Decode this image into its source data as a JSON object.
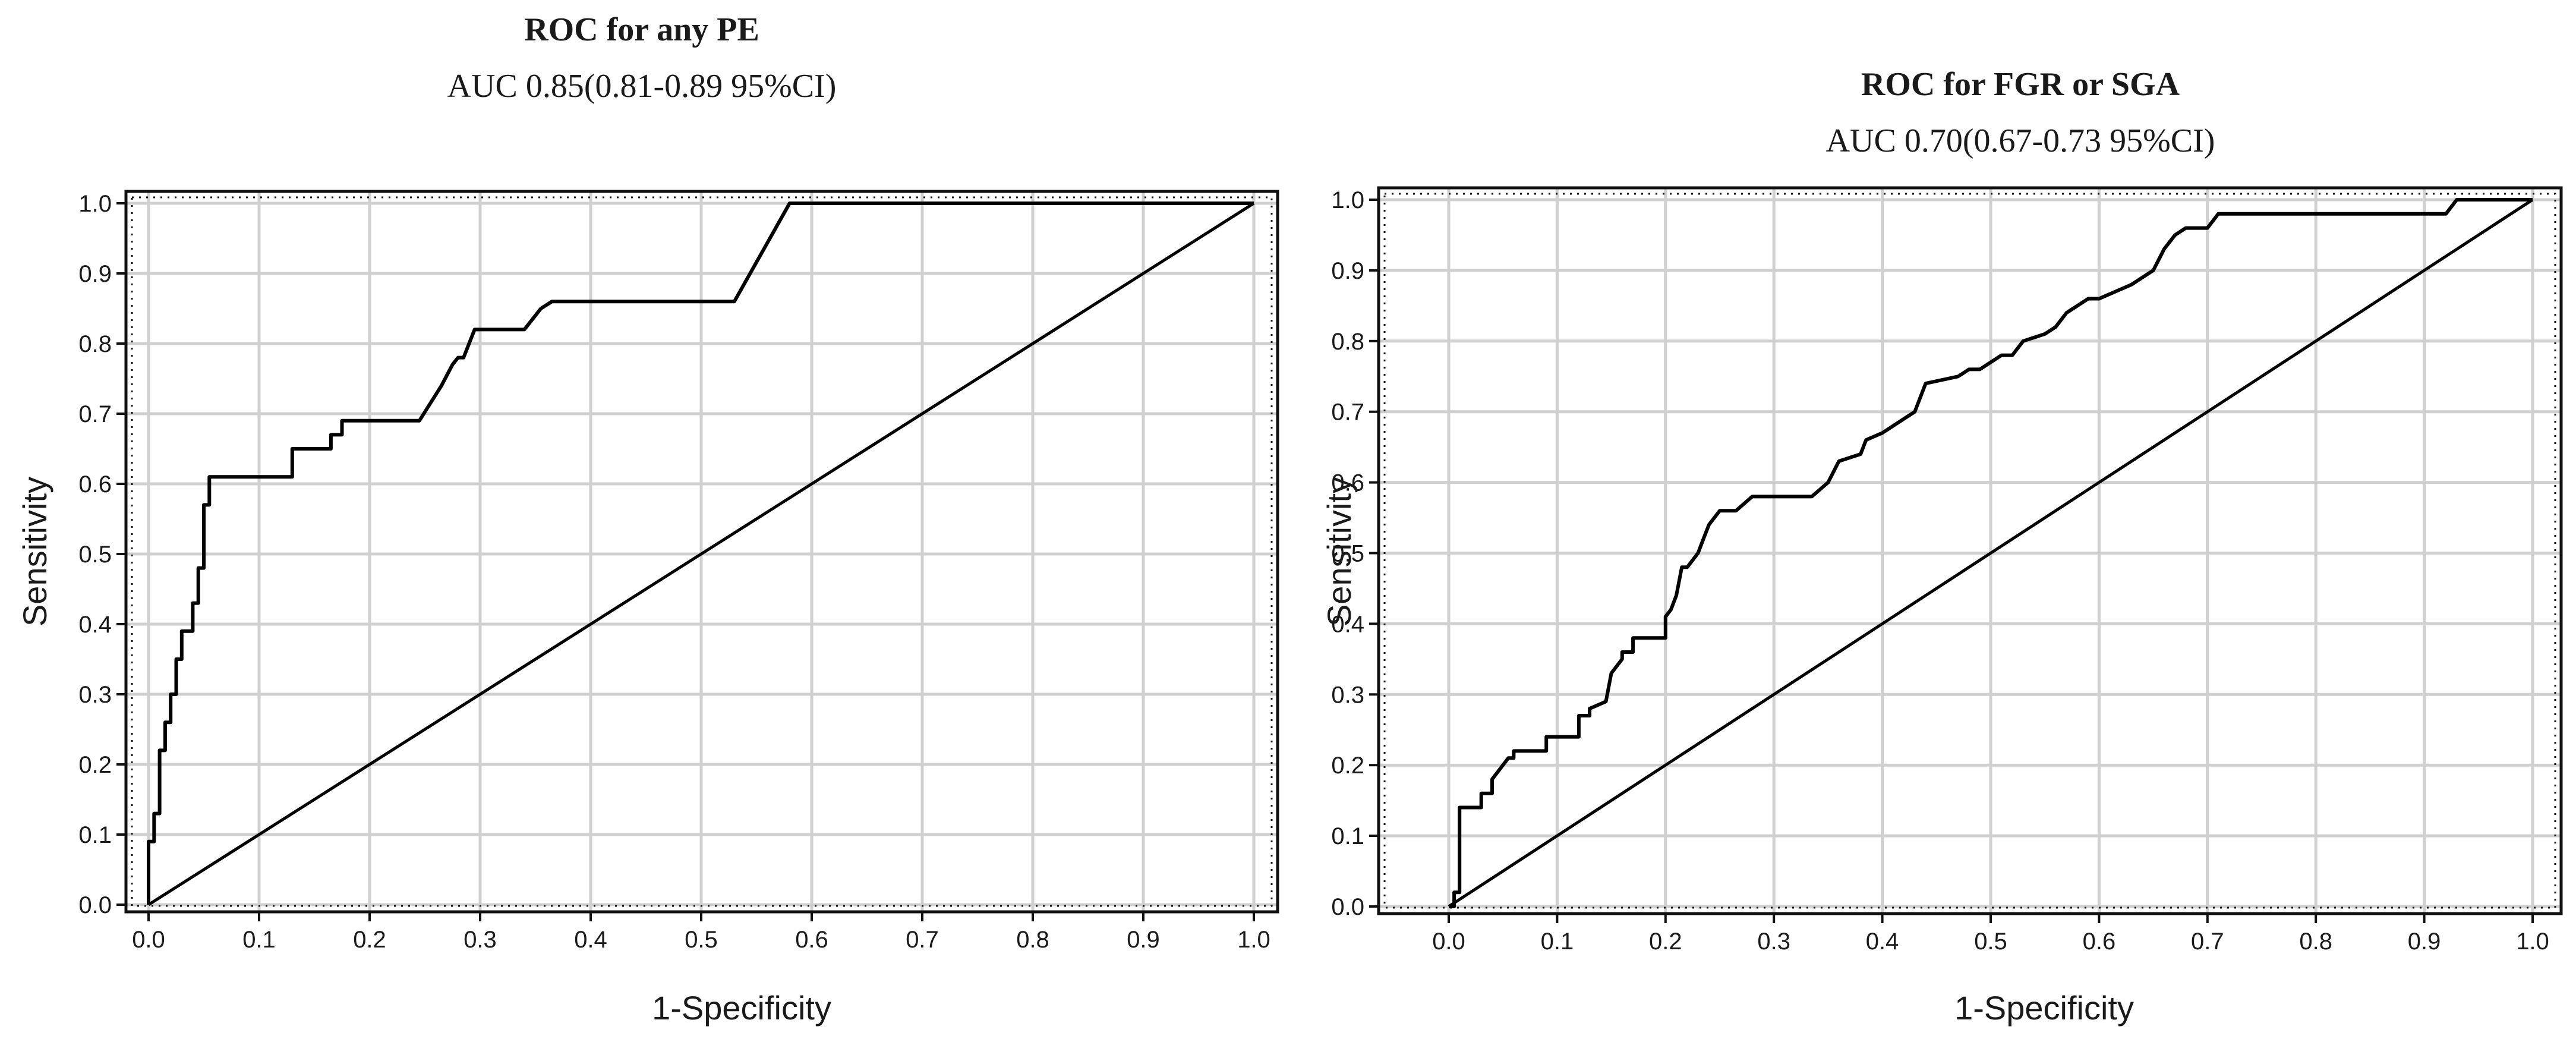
{
  "figure": {
    "left_chart": {
      "title": "ROC for any PE",
      "subtitle": "AUC 0.85(0.81-0.89 95%CI)"
    },
    "right_chart": {
      "title": "ROC for FGR or SGA",
      "subtitle": "AUC 0.70(0.67-0.73 95%CI)"
    }
  },
  "chart_data": [
    {
      "type": "line",
      "title": "ROC for any PE",
      "subtitle": "AUC 0.85(0.81-0.89 95%CI)",
      "xlabel": "1-Specificity",
      "ylabel": "Sensitivity",
      "xlim": [
        0,
        1
      ],
      "ylim": [
        0,
        1
      ],
      "xticks": [
        "0.0",
        "0.1",
        "0.2",
        "0.3",
        "0.4",
        "0.5",
        "0.6",
        "0.7",
        "0.8",
        "0.9",
        "1.0"
      ],
      "yticks": [
        "0.0",
        "0.1",
        "0.2",
        "0.3",
        "0.4",
        "0.5",
        "0.6",
        "0.7",
        "0.8",
        "0.9",
        "1.0"
      ],
      "grid": true,
      "colors": {
        "curve": "#000000",
        "grid": "#d0d0d0"
      },
      "series": [
        {
          "x": [
            0,
            0,
            0.005,
            0.005,
            0.01,
            0.01,
            0.015,
            0.015,
            0.02,
            0.02,
            0.025,
            0.025,
            0.03,
            0.03,
            0.04,
            0.04,
            0.045,
            0.045,
            0.05,
            0.05,
            0.055,
            0.055,
            0.06,
            0.06,
            0.13,
            0.13,
            0.165,
            0.165,
            0.175,
            0.175,
            0.245,
            0.265,
            0.275,
            0.28,
            0.285,
            0.295,
            0.34,
            0.355,
            0.365,
            0.53,
            0.58,
            1.0
          ],
          "y": [
            0,
            0.09,
            0.09,
            0.13,
            0.13,
            0.22,
            0.22,
            0.26,
            0.26,
            0.3,
            0.3,
            0.35,
            0.35,
            0.39,
            0.39,
            0.43,
            0.43,
            0.48,
            0.48,
            0.57,
            0.57,
            0.61,
            0.61,
            0.61,
            0.61,
            0.65,
            0.65,
            0.67,
            0.67,
            0.69,
            0.69,
            0.74,
            0.77,
            0.78,
            0.78,
            0.82,
            0.82,
            0.85,
            0.86,
            0.86,
            1.0,
            1.0
          ]
        },
        {
          "x": [
            0,
            1
          ],
          "y": [
            0,
            1
          ]
        }
      ]
    },
    {
      "type": "line",
      "title": "ROC for FGR or SGA",
      "subtitle": "AUC 0.70(0.67-0.73 95%CI)",
      "xlabel": "1-Specificity",
      "ylabel": "Sensitivity",
      "xlim": [
        0,
        1
      ],
      "ylim": [
        0,
        1
      ],
      "xticks": [
        "0.0",
        "0.1",
        "0.2",
        "0.3",
        "0.4",
        "0.5",
        "0.6",
        "0.7",
        "0.8",
        "0.9",
        "1.0"
      ],
      "yticks": [
        "0.0",
        "0.1",
        "0.2",
        "0.3",
        "0.4",
        "0.5",
        "0.6",
        "0.7",
        "0.8",
        "0.9",
        "1.0"
      ],
      "grid": true,
      "colors": {
        "curve": "#000000",
        "grid": "#d0d0d0"
      },
      "series": [
        {
          "x": [
            0,
            0.005,
            0.005,
            0.01,
            0.01,
            0.03,
            0.03,
            0.04,
            0.04,
            0.05,
            0.055,
            0.06,
            0.06,
            0.09,
            0.09,
            0.12,
            0.12,
            0.13,
            0.13,
            0.145,
            0.15,
            0.16,
            0.16,
            0.17,
            0.17,
            0.2,
            0.2,
            0.205,
            0.21,
            0.215,
            0.22,
            0.23,
            0.235,
            0.24,
            0.25,
            0.265,
            0.28,
            0.335,
            0.35,
            0.36,
            0.38,
            0.385,
            0.4,
            0.41,
            0.43,
            0.44,
            0.47,
            0.48,
            0.49,
            0.51,
            0.52,
            0.53,
            0.55,
            0.56,
            0.57,
            0.59,
            0.6,
            0.63,
            0.65,
            0.66,
            0.67,
            0.68,
            0.7,
            0.71,
            0.72,
            0.92,
            0.93,
            0.96,
            1.0
          ],
          "y": [
            0,
            0,
            0.02,
            0.02,
            0.14,
            0.14,
            0.16,
            0.16,
            0.18,
            0.2,
            0.21,
            0.21,
            0.22,
            0.22,
            0.24,
            0.24,
            0.27,
            0.27,
            0.28,
            0.29,
            0.33,
            0.35,
            0.36,
            0.36,
            0.38,
            0.38,
            0.41,
            0.42,
            0.44,
            0.48,
            0.48,
            0.5,
            0.52,
            0.54,
            0.56,
            0.56,
            0.58,
            0.58,
            0.6,
            0.63,
            0.64,
            0.66,
            0.67,
            0.68,
            0.7,
            0.74,
            0.75,
            0.76,
            0.76,
            0.78,
            0.78,
            0.8,
            0.81,
            0.82,
            0.84,
            0.86,
            0.86,
            0.88,
            0.9,
            0.93,
            0.95,
            0.96,
            0.96,
            0.98,
            0.98,
            0.98,
            1.0,
            1.0,
            1.0
          ]
        },
        {
          "x": [
            0,
            1
          ],
          "y": [
            0,
            1
          ]
        }
      ]
    }
  ]
}
